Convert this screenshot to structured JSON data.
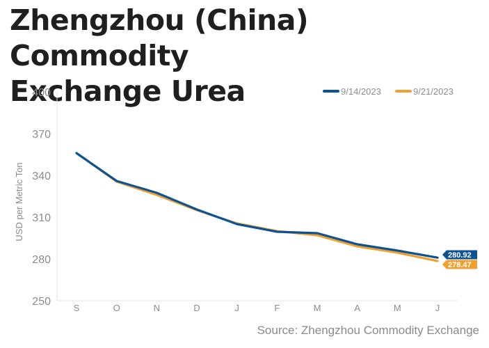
{
  "chart_data": {
    "type": "line",
    "title": "Zhengzhou (China) Commodity Exchange Urea",
    "ylabel": "USD per Metric Ton",
    "xlabel": "",
    "categories": [
      "S",
      "O",
      "N",
      "D",
      "J",
      "F",
      "M",
      "A",
      "M",
      "J"
    ],
    "ylim": [
      250,
      400
    ],
    "yticks": [
      "400",
      "370",
      "340",
      "310",
      "280",
      "250"
    ],
    "grid": false,
    "legend_position": "top-right",
    "series": [
      {
        "name": "9/14/2023",
        "color": "#0b5394",
        "values": [
          356,
          336,
          327.5,
          315.5,
          305,
          299.5,
          298.5,
          290.5,
          286,
          280.92
        ],
        "end_label": "280.92"
      },
      {
        "name": "9/21/2023",
        "color": "#f0a030",
        "values": [
          356,
          335.5,
          326,
          315,
          305.5,
          300,
          297,
          289,
          284.5,
          278.47
        ],
        "end_label": "278.47"
      }
    ]
  },
  "source": "Source: Zhengzhou Commodity Exchange"
}
